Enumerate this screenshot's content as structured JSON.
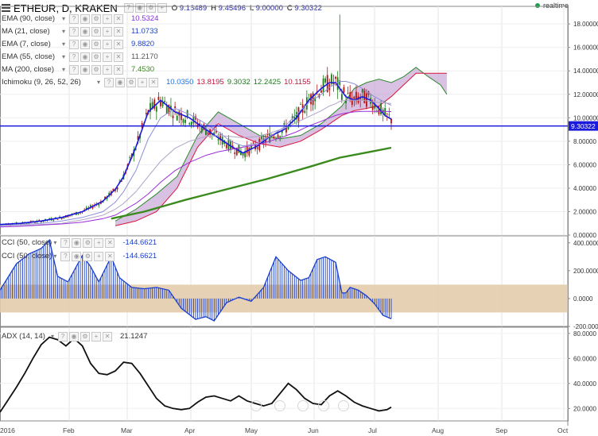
{
  "header": {
    "title": "ETHEUR, D, KRAKEN",
    "ohlc": [
      {
        "k": "O",
        "v": "9.16489"
      },
      {
        "k": "H",
        "v": "9.45496"
      },
      {
        "k": "L",
        "v": "9.00000"
      },
      {
        "k": "C",
        "v": "9.30322"
      }
    ],
    "realtime": "realtime"
  },
  "indicators": [
    {
      "label": "EMA (90, close)",
      "value": "10.5324",
      "color": "#8a2be2"
    },
    {
      "label": "MA (21, close)",
      "value": "11.0733",
      "color": "#1a3fcc"
    },
    {
      "label": "EMA (7, close)",
      "value": "9.8820",
      "color": "#1a3fcc"
    },
    {
      "label": "EMA (55, close)",
      "value": "11.2170",
      "color": "#555555"
    },
    {
      "label": "MA (200, close)",
      "value": "7.4530",
      "color": "#3a8a1e"
    },
    {
      "label": "Ichimoku (9, 26, 52, 26)",
      "values": [
        {
          "v": "10.0350",
          "color": "#1a73e8"
        },
        {
          "v": "13.8195",
          "color": "#c0143c"
        },
        {
          "v": "9.3032",
          "color": "#1e7a1e"
        },
        {
          "v": "12.2425",
          "color": "#1e7a1e"
        },
        {
          "v": "10.1155",
          "color": "#c0143c"
        }
      ]
    }
  ],
  "cci_legend": [
    {
      "label": "CCI (50, close)",
      "value": "-144.6621",
      "color": "#1a3fcc"
    },
    {
      "label": "CCI (50, close)",
      "value": "-144.6621",
      "color": "#1a3fcc"
    }
  ],
  "adx_legend": {
    "label": "ADX (14, 14)",
    "value": "21.1247",
    "color": "#333333"
  },
  "colors": {
    "price_line": "#1a1adc",
    "price_label_bg": "#1a1adc",
    "cloud_fill": "#c7a6d6",
    "cloud_edge": "#2e8b2e",
    "kijun": "#dc143c",
    "cci_band": "#e3ccac",
    "cci_bars": "#1a3fcc",
    "candle_up": "#1e7a1e",
    "candle_down": "#b31414",
    "adx": "#111111"
  },
  "chart_data": [
    {
      "type": "line",
      "panel": "price",
      "title": "ETHEUR, D, KRAKEN",
      "ylim": [
        0,
        19.5
      ],
      "y_ticks": [
        "18.00000",
        "16.00000",
        "14.00000",
        "12.00000",
        "10.00000",
        "8.00000",
        "6.00000",
        "4.00000",
        "2.00000",
        "0.00000"
      ],
      "current_price": 9.30322,
      "current_price_label": "9.30322",
      "x_labels": [
        "2016",
        "Feb",
        "Mar",
        "Apr",
        "May",
        "Jun",
        "Jul",
        "Aug",
        "Sep",
        "Oct"
      ],
      "series": [
        {
          "name": "EMA (7, close)",
          "x": [
            0,
            10,
            20,
            30,
            40,
            50,
            56,
            60,
            66,
            72,
            78,
            85,
            92,
            100,
            106,
            112,
            118,
            125,
            131,
            138,
            144,
            150,
            156,
            160,
            163,
            165,
            168,
            172,
            176,
            180,
            184,
            187,
            190
          ],
          "values": [
            0.9,
            1.0,
            1.2,
            1.5,
            2.0,
            2.9,
            3.9,
            5.0,
            7.5,
            10.5,
            11.5,
            10.5,
            10.0,
            9.0,
            8.3,
            7.6,
            7.0,
            7.6,
            8.4,
            9.0,
            10.0,
            11.5,
            12.5,
            13.0,
            13.0,
            12.5,
            11.8,
            11.5,
            11.8,
            11.5,
            10.8,
            10.2,
            9.88
          ]
        },
        {
          "name": "MA (21, close)",
          "x": [
            0,
            10,
            20,
            30,
            40,
            50,
            56,
            60,
            66,
            72,
            78,
            85,
            92,
            100,
            106,
            112,
            118,
            125,
            131,
            138,
            144,
            150,
            156,
            160,
            163,
            165,
            168,
            172,
            176,
            180,
            184,
            187,
            190
          ],
          "values": [
            0.8,
            0.9,
            1.0,
            1.2,
            1.5,
            2.0,
            2.8,
            3.7,
            5.5,
            8.2,
            10.0,
            10.8,
            10.3,
            9.5,
            8.8,
            8.0,
            7.6,
            7.8,
            8.4,
            9.2,
            10.3,
            11.3,
            12.0,
            12.6,
            12.9,
            13.1,
            13.1,
            12.9,
            12.5,
            12.0,
            11.6,
            11.3,
            11.07
          ]
        },
        {
          "name": "EMA (55, close)",
          "x": [
            0,
            10,
            20,
            30,
            40,
            50,
            56,
            60,
            66,
            72,
            78,
            85,
            92,
            100,
            106,
            112,
            118,
            125,
            131,
            138,
            144,
            150,
            156,
            160,
            163,
            165,
            168,
            172,
            176,
            180,
            184,
            187,
            190
          ],
          "values": [
            0.7,
            0.8,
            0.9,
            1.0,
            1.3,
            1.7,
            2.2,
            2.7,
            3.7,
            5.0,
            6.3,
            7.4,
            8.0,
            8.4,
            8.5,
            8.4,
            8.3,
            8.4,
            8.7,
            9.1,
            9.6,
            10.1,
            10.6,
            11.0,
            11.2,
            11.4,
            11.5,
            11.5,
            11.5,
            11.4,
            11.3,
            11.25,
            11.22
          ]
        },
        {
          "name": "EMA (90, close)",
          "x": [
            0,
            10,
            20,
            30,
            40,
            50,
            56,
            60,
            66,
            72,
            78,
            85,
            92,
            100,
            106,
            112,
            118,
            125,
            131,
            138,
            144,
            150,
            156,
            160,
            163,
            165,
            168,
            172,
            176,
            180,
            184,
            187,
            190
          ],
          "values": [
            0.7,
            0.75,
            0.85,
            0.95,
            1.1,
            1.4,
            1.7,
            2.1,
            2.7,
            3.5,
            4.5,
            5.5,
            6.2,
            6.8,
            7.1,
            7.3,
            7.5,
            7.7,
            8.0,
            8.4,
            8.8,
            9.3,
            9.7,
            10.0,
            10.2,
            10.3,
            10.4,
            10.5,
            10.55,
            10.55,
            10.55,
            10.54,
            10.53
          ]
        },
        {
          "name": "MA (200, close)",
          "x": [
            54,
            70,
            90,
            110,
            130,
            150,
            165,
            180,
            190
          ],
          "values": [
            1.4,
            2.0,
            3.0,
            3.9,
            4.8,
            5.8,
            6.6,
            7.1,
            7.45
          ]
        },
        {
          "name": "Senkou A",
          "x": [
            56,
            66,
            76,
            86,
            96,
            106,
            116,
            126,
            136,
            146,
            156,
            166,
            172,
            178,
            184,
            190,
            196,
            202,
            208,
            214,
            217
          ],
          "values": [
            1.2,
            2.2,
            3.5,
            5.0,
            8.5,
            10.5,
            9.5,
            8.5,
            8.2,
            8.5,
            9.5,
            11.0,
            12.5,
            13.0,
            13.3,
            13.0,
            13.5,
            14.3,
            13.5,
            12.8,
            12.0
          ]
        },
        {
          "name": "Senkou B",
          "x": [
            56,
            66,
            76,
            86,
            96,
            106,
            116,
            126,
            136,
            146,
            156,
            166,
            172,
            178,
            184,
            190,
            196,
            202,
            208,
            214,
            217
          ],
          "values": [
            0.8,
            1.2,
            2.0,
            4.0,
            7.5,
            9.5,
            8.5,
            7.8,
            7.5,
            8.0,
            9.0,
            10.2,
            10.6,
            10.8,
            11.0,
            11.8,
            12.8,
            13.8,
            13.8,
            13.8,
            13.8
          ]
        }
      ]
    },
    {
      "type": "bar",
      "panel": "cci",
      "title": "CCI (50, close)",
      "ylim": [
        -200,
        450
      ],
      "y_ticks": [
        "400.0000",
        "200.0000",
        "0.0000",
        "-200.0000"
      ],
      "band": [
        -100,
        100
      ],
      "x": [
        0,
        8,
        14,
        20,
        24,
        28,
        33,
        40,
        44,
        48,
        54,
        58,
        64,
        70,
        76,
        82,
        88,
        95,
        100,
        104,
        110,
        116,
        122,
        128,
        134,
        140,
        146,
        150,
        154,
        158,
        163,
        166,
        168,
        170,
        174,
        178,
        182,
        186,
        190
      ],
      "values": [
        60,
        250,
        320,
        360,
        420,
        160,
        120,
        310,
        230,
        120,
        300,
        150,
        80,
        70,
        80,
        60,
        -70,
        -150,
        -130,
        -160,
        -30,
        10,
        -20,
        80,
        300,
        200,
        130,
        150,
        280,
        300,
        260,
        40,
        40,
        80,
        60,
        20,
        -40,
        -120,
        -145
      ]
    },
    {
      "type": "line",
      "panel": "adx",
      "title": "ADX (14, 14)",
      "ylim": [
        10,
        85
      ],
      "y_ticks": [
        "80.0000",
        "60.0000",
        "40.0000",
        "20.0000"
      ],
      "x": [
        0,
        4,
        8,
        12,
        16,
        20,
        24,
        28,
        32,
        36,
        40,
        44,
        48,
        52,
        56,
        60,
        64,
        68,
        72,
        76,
        80,
        84,
        88,
        92,
        96,
        100,
        104,
        108,
        112,
        116,
        120,
        124,
        128,
        132,
        136,
        140,
        144,
        148,
        152,
        156,
        160,
        164,
        168,
        172,
        176,
        180,
        184,
        188,
        190
      ],
      "values": [
        17,
        27,
        37,
        48,
        60,
        71,
        77,
        75,
        70,
        76,
        70,
        56,
        48,
        47,
        50,
        57,
        56,
        48,
        38,
        28,
        22,
        20,
        19,
        20,
        25,
        29,
        30,
        28,
        26,
        30,
        26,
        24,
        22,
        24,
        32,
        40,
        35,
        28,
        24,
        23,
        30,
        34,
        30,
        25,
        22,
        20,
        18,
        19,
        21
      ]
    }
  ]
}
